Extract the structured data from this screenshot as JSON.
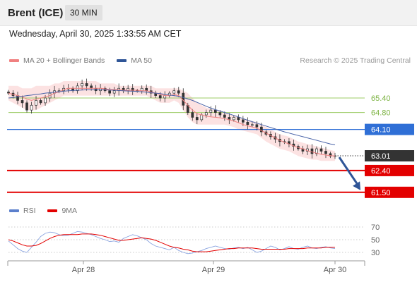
{
  "header": {
    "title": "Brent (ICE)",
    "timeframe": "30 MIN"
  },
  "datetime": "Wednesday, April 30, 2025 1:33:55 AM CET",
  "legend": {
    "ma20": {
      "label": "MA 20 + Bollinger Bands",
      "color": "#f08080"
    },
    "ma50": {
      "label": "MA 50",
      "color": "#2f5597"
    }
  },
  "research": "Research © 2025 Trading Central",
  "rsi_legend": {
    "rsi": {
      "label": "RSI",
      "color": "#5b7fcc"
    },
    "ma9": {
      "label": "9MA",
      "color": "#e30000"
    }
  },
  "chart_data": {
    "type": "candlestick",
    "x_ticks": [
      "Apr 28",
      "Apr 29",
      "Apr 30"
    ],
    "ylim": [
      61.2,
      66.0
    ],
    "levels": [
      {
        "value": 65.4,
        "label": "65.40",
        "kind": "resistance",
        "color": "#9ccc65"
      },
      {
        "value": 64.8,
        "label": "64.80",
        "kind": "resistance",
        "color": "#9ccc65"
      },
      {
        "value": 64.1,
        "label": "64.10",
        "kind": "pivot",
        "color": "#2f6fd6"
      },
      {
        "value": 63.01,
        "label": "63.01",
        "kind": "last",
        "color": "#333333"
      },
      {
        "value": 62.4,
        "label": "62.40",
        "kind": "support",
        "color": "#e30000"
      },
      {
        "value": 61.5,
        "label": "61.50",
        "kind": "support",
        "color": "#e30000"
      }
    ],
    "close": [
      65.6,
      65.5,
      65.3,
      65.2,
      64.9,
      65.1,
      65.3,
      65.2,
      65.4,
      65.6,
      65.7,
      65.7,
      65.8,
      65.8,
      65.7,
      65.9,
      66.0,
      65.9,
      65.8,
      65.7,
      65.8,
      65.7,
      65.6,
      65.7,
      65.8,
      65.7,
      65.8,
      65.7,
      65.7,
      65.8,
      65.7,
      65.6,
      65.5,
      65.4,
      65.5,
      65.6,
      65.7,
      65.6,
      65.1,
      64.8,
      64.6,
      64.5,
      64.7,
      64.8,
      64.9,
      64.8,
      64.7,
      64.6,
      64.5,
      64.6,
      64.5,
      64.4,
      64.3,
      64.3,
      64.2,
      64.0,
      63.9,
      63.8,
      63.7,
      63.6,
      63.6,
      63.5,
      63.4,
      63.3,
      63.2,
      63.3,
      63.1,
      63.3,
      63.2,
      63.1,
      63.0,
      63.01
    ],
    "bands": {
      "upper": [
        65.9,
        65.9,
        65.9,
        65.8,
        65.8,
        65.8,
        65.9,
        65.9,
        65.9,
        65.9,
        66.0,
        66.0,
        66.1,
        66.1,
        66.1,
        66.1,
        66.1,
        66.1,
        66.1,
        66.1,
        66.0,
        66.0,
        66.0,
        66.0,
        65.9,
        65.9,
        65.9,
        65.9,
        65.9,
        65.9,
        65.9,
        65.9,
        65.8,
        65.8,
        65.8,
        65.8,
        65.8,
        65.8,
        65.7,
        65.6,
        65.4,
        65.2,
        65.1,
        65.0,
        64.95,
        64.9,
        64.85,
        64.8,
        64.7,
        64.7,
        64.6,
        64.55,
        64.5,
        64.45,
        64.4,
        64.3,
        64.2,
        64.1,
        64.0,
        63.9,
        63.85,
        63.8,
        63.7,
        63.6,
        63.55,
        63.5,
        63.45,
        63.4,
        63.35,
        63.3,
        63.25,
        63.2
      ],
      "lower": [
        65.3,
        65.2,
        65.1,
        65.0,
        64.9,
        64.9,
        64.9,
        65.0,
        65.1,
        65.2,
        65.3,
        65.4,
        65.5,
        65.5,
        65.5,
        65.5,
        65.5,
        65.5,
        65.5,
        65.5,
        65.5,
        65.5,
        65.5,
        65.5,
        65.5,
        65.5,
        65.5,
        65.5,
        65.5,
        65.5,
        65.5,
        65.4,
        65.3,
        65.2,
        65.2,
        65.2,
        65.3,
        65.2,
        64.9,
        64.6,
        64.4,
        64.3,
        64.3,
        64.3,
        64.3,
        64.3,
        64.3,
        64.3,
        64.25,
        64.2,
        64.1,
        64.05,
        64.0,
        63.95,
        63.9,
        63.75,
        63.6,
        63.5,
        63.4,
        63.3,
        63.25,
        63.2,
        63.1,
        63.0,
        62.95,
        62.9,
        62.85,
        62.85,
        62.8,
        62.8,
        62.8,
        62.8
      ],
      "ma20": [
        65.6,
        65.55,
        65.5,
        65.45,
        65.35,
        65.3,
        65.35,
        65.4,
        65.45,
        65.5,
        65.6,
        65.65,
        65.75,
        65.8,
        65.8,
        65.8,
        65.8,
        65.8,
        65.8,
        65.8,
        65.8,
        65.78,
        65.75,
        65.75,
        65.75,
        65.72,
        65.72,
        65.72,
        65.72,
        65.7,
        65.7,
        65.65,
        65.6,
        65.55,
        65.5,
        65.5,
        65.55,
        65.5,
        65.3,
        65.1,
        64.9,
        64.75,
        64.7,
        64.65,
        64.62,
        64.6,
        64.58,
        64.55,
        64.5,
        64.45,
        64.38,
        64.3,
        64.25,
        64.2,
        64.15,
        64.05,
        63.95,
        63.85,
        63.75,
        63.65,
        63.57,
        63.5,
        63.42,
        63.35,
        63.3,
        63.22,
        63.17,
        63.12,
        63.07,
        63.04,
        63.02,
        63.0
      ],
      "ma50": [
        65.4,
        65.42,
        65.45,
        65.47,
        65.5,
        65.52,
        65.55,
        65.57,
        65.6,
        65.62,
        65.64,
        65.66,
        65.68,
        65.7,
        65.71,
        65.72,
        65.73,
        65.74,
        65.74,
        65.74,
        65.74,
        65.74,
        65.73,
        65.72,
        65.71,
        65.7,
        65.69,
        65.68,
        65.67,
        65.66,
        65.64,
        65.62,
        65.6,
        65.58,
        65.55,
        65.52,
        65.5,
        65.47,
        65.42,
        65.36,
        65.3,
        65.22,
        65.14,
        65.06,
        64.98,
        64.92,
        64.86,
        64.8,
        64.74,
        64.68,
        64.62,
        64.55,
        64.48,
        64.42,
        64.36,
        64.3,
        64.24,
        64.18,
        64.12,
        64.06,
        64.0,
        63.95,
        63.9,
        63.85,
        63.8,
        63.75,
        63.7,
        63.65,
        63.6,
        63.55,
        63.5,
        63.47
      ]
    },
    "rsi": {
      "ticks": [
        70,
        50,
        30
      ],
      "rsi": [
        48,
        42,
        36,
        32,
        30,
        38,
        46,
        55,
        60,
        62,
        61,
        58,
        56,
        57,
        60,
        63,
        62,
        60,
        58,
        55,
        52,
        50,
        47,
        48,
        46,
        52,
        55,
        58,
        56,
        53,
        50,
        44,
        40,
        38,
        36,
        34,
        38,
        33,
        30,
        28,
        29,
        31,
        33,
        36,
        38,
        40,
        38,
        36,
        35,
        37,
        38,
        36,
        38,
        34,
        30,
        32,
        36,
        40,
        38,
        34,
        36,
        39,
        36,
        35,
        38,
        40,
        37,
        36,
        38,
        39,
        37,
        36
      ],
      "ma9": [
        50,
        48,
        45,
        42,
        40,
        40,
        41,
        44,
        48,
        52,
        55,
        57,
        58,
        58,
        58,
        58,
        59,
        59,
        59,
        58,
        57,
        55,
        53,
        51,
        49,
        49,
        50,
        51,
        52,
        53,
        52,
        51,
        49,
        46,
        43,
        40,
        38,
        37,
        35,
        34,
        32,
        31,
        31,
        31,
        32,
        33,
        34,
        35,
        36,
        36,
        37,
        37,
        37,
        37,
        36,
        35,
        35,
        35,
        35,
        35,
        35,
        36,
        36,
        36,
        36,
        37,
        37,
        37,
        37,
        38,
        38,
        38
      ]
    }
  }
}
